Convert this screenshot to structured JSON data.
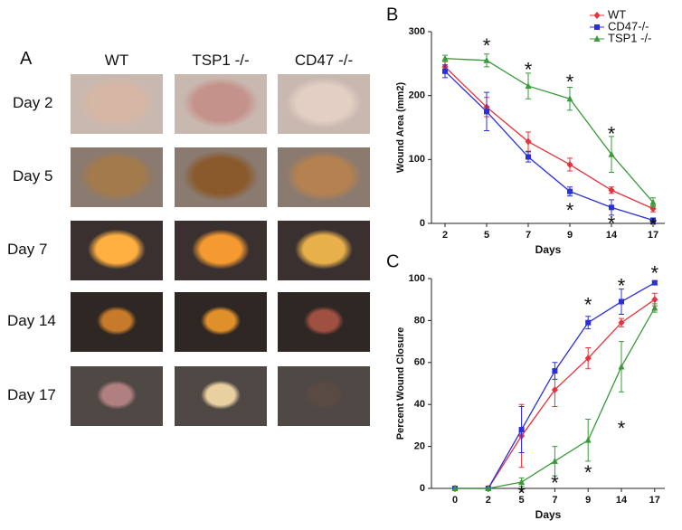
{
  "panel_a": {
    "label": "A",
    "columns": [
      "WT",
      "TSP1 -/-",
      "CD47 -/-"
    ],
    "rows": [
      "Day 2",
      "Day 5",
      "Day 7",
      "Day 14",
      "Day 17"
    ]
  },
  "chart_data": [
    {
      "type": "line",
      "panel_label": "B",
      "x_label": "Days",
      "y_label": "Wound Area (mm2)",
      "categories": [
        "2",
        "5",
        "7",
        "9",
        "14",
        "17"
      ],
      "ylim": [
        0,
        300
      ],
      "yticks": [
        0,
        100,
        200,
        300
      ],
      "legend": "top-right",
      "series": [
        {
          "name": "WT",
          "color": "#e8323c",
          "marker": "diamond",
          "values": [
            245,
            182,
            128,
            92,
            52,
            23
          ],
          "errors": [
            10,
            15,
            15,
            10,
            5,
            5
          ]
        },
        {
          "name": "CD47-/-",
          "color": "#2a2fd8",
          "marker": "square",
          "values": [
            238,
            175,
            104,
            50,
            25,
            5
          ],
          "errors": [
            10,
            30,
            8,
            7,
            12,
            3
          ]
        },
        {
          "name": "TSP1 -/-",
          "color": "#3a9a3a",
          "marker": "triangle",
          "values": [
            258,
            255,
            215,
            195,
            108,
            33
          ],
          "errors": [
            5,
            10,
            20,
            18,
            28,
            7
          ]
        }
      ],
      "annotations": [
        {
          "text": "*",
          "category": "5",
          "y": 283
        },
        {
          "text": "*",
          "category": "7",
          "y": 245
        },
        {
          "text": "*",
          "category": "9",
          "y": 226
        },
        {
          "text": "*",
          "category": "14",
          "y": 145
        },
        {
          "text": "*",
          "category": "9",
          "y": 25
        },
        {
          "text": "*",
          "category": "14",
          "y": 5
        },
        {
          "text": "*",
          "category": "17",
          "y": 2
        }
      ]
    },
    {
      "type": "line",
      "panel_label": "C",
      "x_label": "Days",
      "y_label": "Percent Wound Closure",
      "categories": [
        "0",
        "2",
        "5",
        "7",
        "9",
        "14",
        "17"
      ],
      "ylim": [
        0,
        100
      ],
      "yticks": [
        0,
        20,
        40,
        60,
        80,
        100
      ],
      "series": [
        {
          "name": "WT",
          "color": "#e8323c",
          "marker": "diamond",
          "values": [
            0,
            0,
            25,
            47,
            62,
            79,
            90
          ],
          "errors": [
            0,
            0,
            15,
            8,
            5,
            2,
            3
          ]
        },
        {
          "name": "CD47-/-",
          "color": "#2a2fd8",
          "marker": "square",
          "values": [
            0,
            0,
            28,
            56,
            79,
            89,
            98
          ],
          "errors": [
            0,
            0,
            11,
            4,
            3,
            6,
            1
          ]
        },
        {
          "name": "TSP1 -/-",
          "color": "#3a9a3a",
          "marker": "triangle",
          "values": [
            0,
            0,
            3,
            13,
            23,
            58,
            86
          ],
          "errors": [
            0,
            0,
            2,
            7,
            10,
            12,
            2
          ]
        }
      ],
      "annotations": [
        {
          "text": "*",
          "category": "9",
          "y": 89
        },
        {
          "text": "*",
          "category": "14",
          "y": 98
        },
        {
          "text": "*",
          "category": "17",
          "y": 104
        },
        {
          "text": "*",
          "category": "5",
          "y": -1
        },
        {
          "text": "*",
          "category": "7",
          "y": 4
        },
        {
          "text": "*",
          "category": "9",
          "y": 9
        },
        {
          "text": "*",
          "category": "14",
          "y": 30
        }
      ]
    }
  ]
}
